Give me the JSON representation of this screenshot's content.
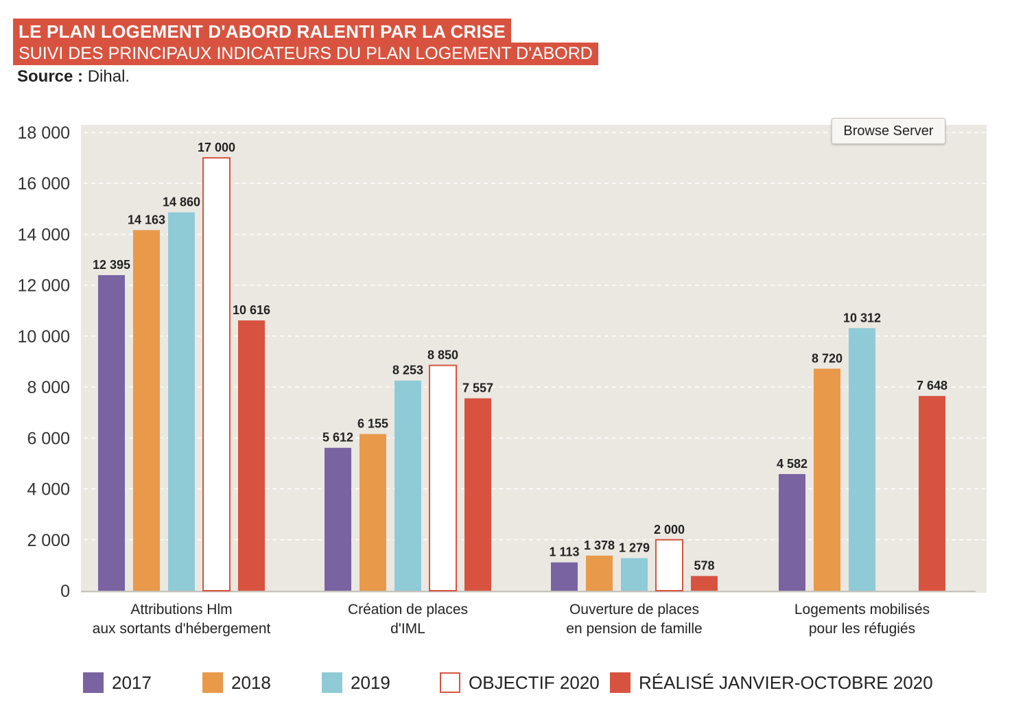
{
  "header": {
    "title": "LE PLAN LOGEMENT D'ABORD RALENTI PAR LA CRISE",
    "subtitle": "SUIVI DES PRINCIPAUX INDICATEURS DU PLAN LOGEMENT D'ABORD",
    "source_label": "Source :",
    "source_value": "Dihal."
  },
  "overlay": {
    "browse_button": "Browse Server"
  },
  "colors": {
    "2017": "#7963a1",
    "2018": "#e8994a",
    "2019": "#8ecbd6",
    "objectif_fill": "#ffffff",
    "objectif_stroke": "#d8533f",
    "realise": "#d8533f",
    "plot_bg": "#ebe8e2",
    "accent": "#d8533f"
  },
  "chart_data": {
    "type": "bar",
    "title": "LE PLAN LOGEMENT D'ABORD RALENTI PAR LA CRISE",
    "subtitle": "SUIVI DES PRINCIPAUX INDICATEURS DU PLAN LOGEMENT D'ABORD",
    "categories": [
      [
        "Attributions Hlm",
        "aux sortants d'hébergement"
      ],
      [
        "Création de places",
        "d'IML"
      ],
      [
        "Ouverture de places",
        "en pension de famille"
      ],
      [
        "Logements mobilisés",
        "pour les réfugiés"
      ]
    ],
    "series": [
      {
        "name": "2017",
        "values": [
          12395,
          5612,
          1113,
          4582
        ],
        "labels": [
          "12 395",
          "5 612",
          "1 113",
          "4 582"
        ]
      },
      {
        "name": "2018",
        "values": [
          14163,
          6155,
          1378,
          8720
        ],
        "labels": [
          "14 163",
          "6 155",
          "1 378",
          "8 720"
        ]
      },
      {
        "name": "2019",
        "values": [
          14860,
          8253,
          1279,
          10312
        ],
        "labels": [
          "14 860",
          "8 253",
          "1 279",
          "10 312"
        ]
      },
      {
        "name": "OBJECTIF 2020",
        "values": [
          17000,
          8850,
          2000,
          null
        ],
        "labels": [
          "17 000",
          "8 850",
          "2 000",
          null
        ]
      },
      {
        "name": "RÉALISÉ JANVIER-OCTOBRE 2020",
        "values": [
          10616,
          7557,
          578,
          7648
        ],
        "labels": [
          "10 616",
          "7 557",
          "578",
          "7 648"
        ]
      }
    ],
    "yticks": [
      0,
      2000,
      4000,
      6000,
      8000,
      10000,
      12000,
      14000,
      16000,
      18000
    ],
    "ytick_labels": [
      "0",
      "2 000",
      "4 000",
      "6 000",
      "8 000",
      "10 000",
      "12 000",
      "14 000",
      "16 000",
      "18 000"
    ],
    "ylim": [
      0,
      18000
    ],
    "grid": true,
    "legend_position": "bottom"
  },
  "legend": [
    {
      "label": "2017",
      "key": "2017"
    },
    {
      "label": "2018",
      "key": "2018"
    },
    {
      "label": "2019",
      "key": "2019"
    },
    {
      "label": "OBJECTIF 2020",
      "key": "objectif"
    },
    {
      "label": "RÉALISÉ JANVIER-OCTOBRE 2020",
      "key": "realise"
    }
  ]
}
